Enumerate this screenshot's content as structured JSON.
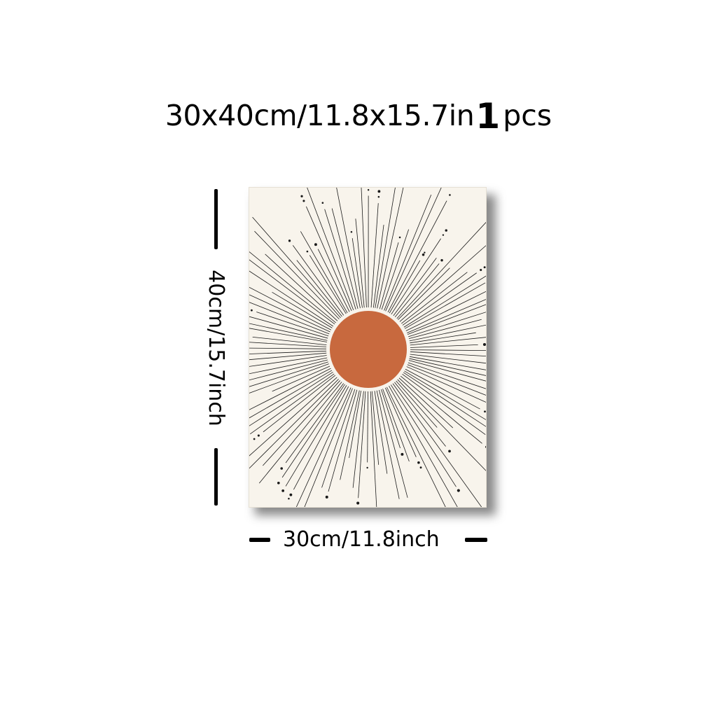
{
  "product": {
    "size_text": "30x40cm/11.8x15.7in",
    "quantity_number": "1",
    "quantity_unit": "pcs"
  },
  "dimensions": {
    "height_label": "40cm/15.7inch",
    "width_label": "30cm/11.8inch"
  },
  "artwork": {
    "subject": "sunburst-art-icon",
    "colors": {
      "background": "#f8f4ec",
      "sun": "#c8693e",
      "rays": "#1a1a1a"
    }
  }
}
